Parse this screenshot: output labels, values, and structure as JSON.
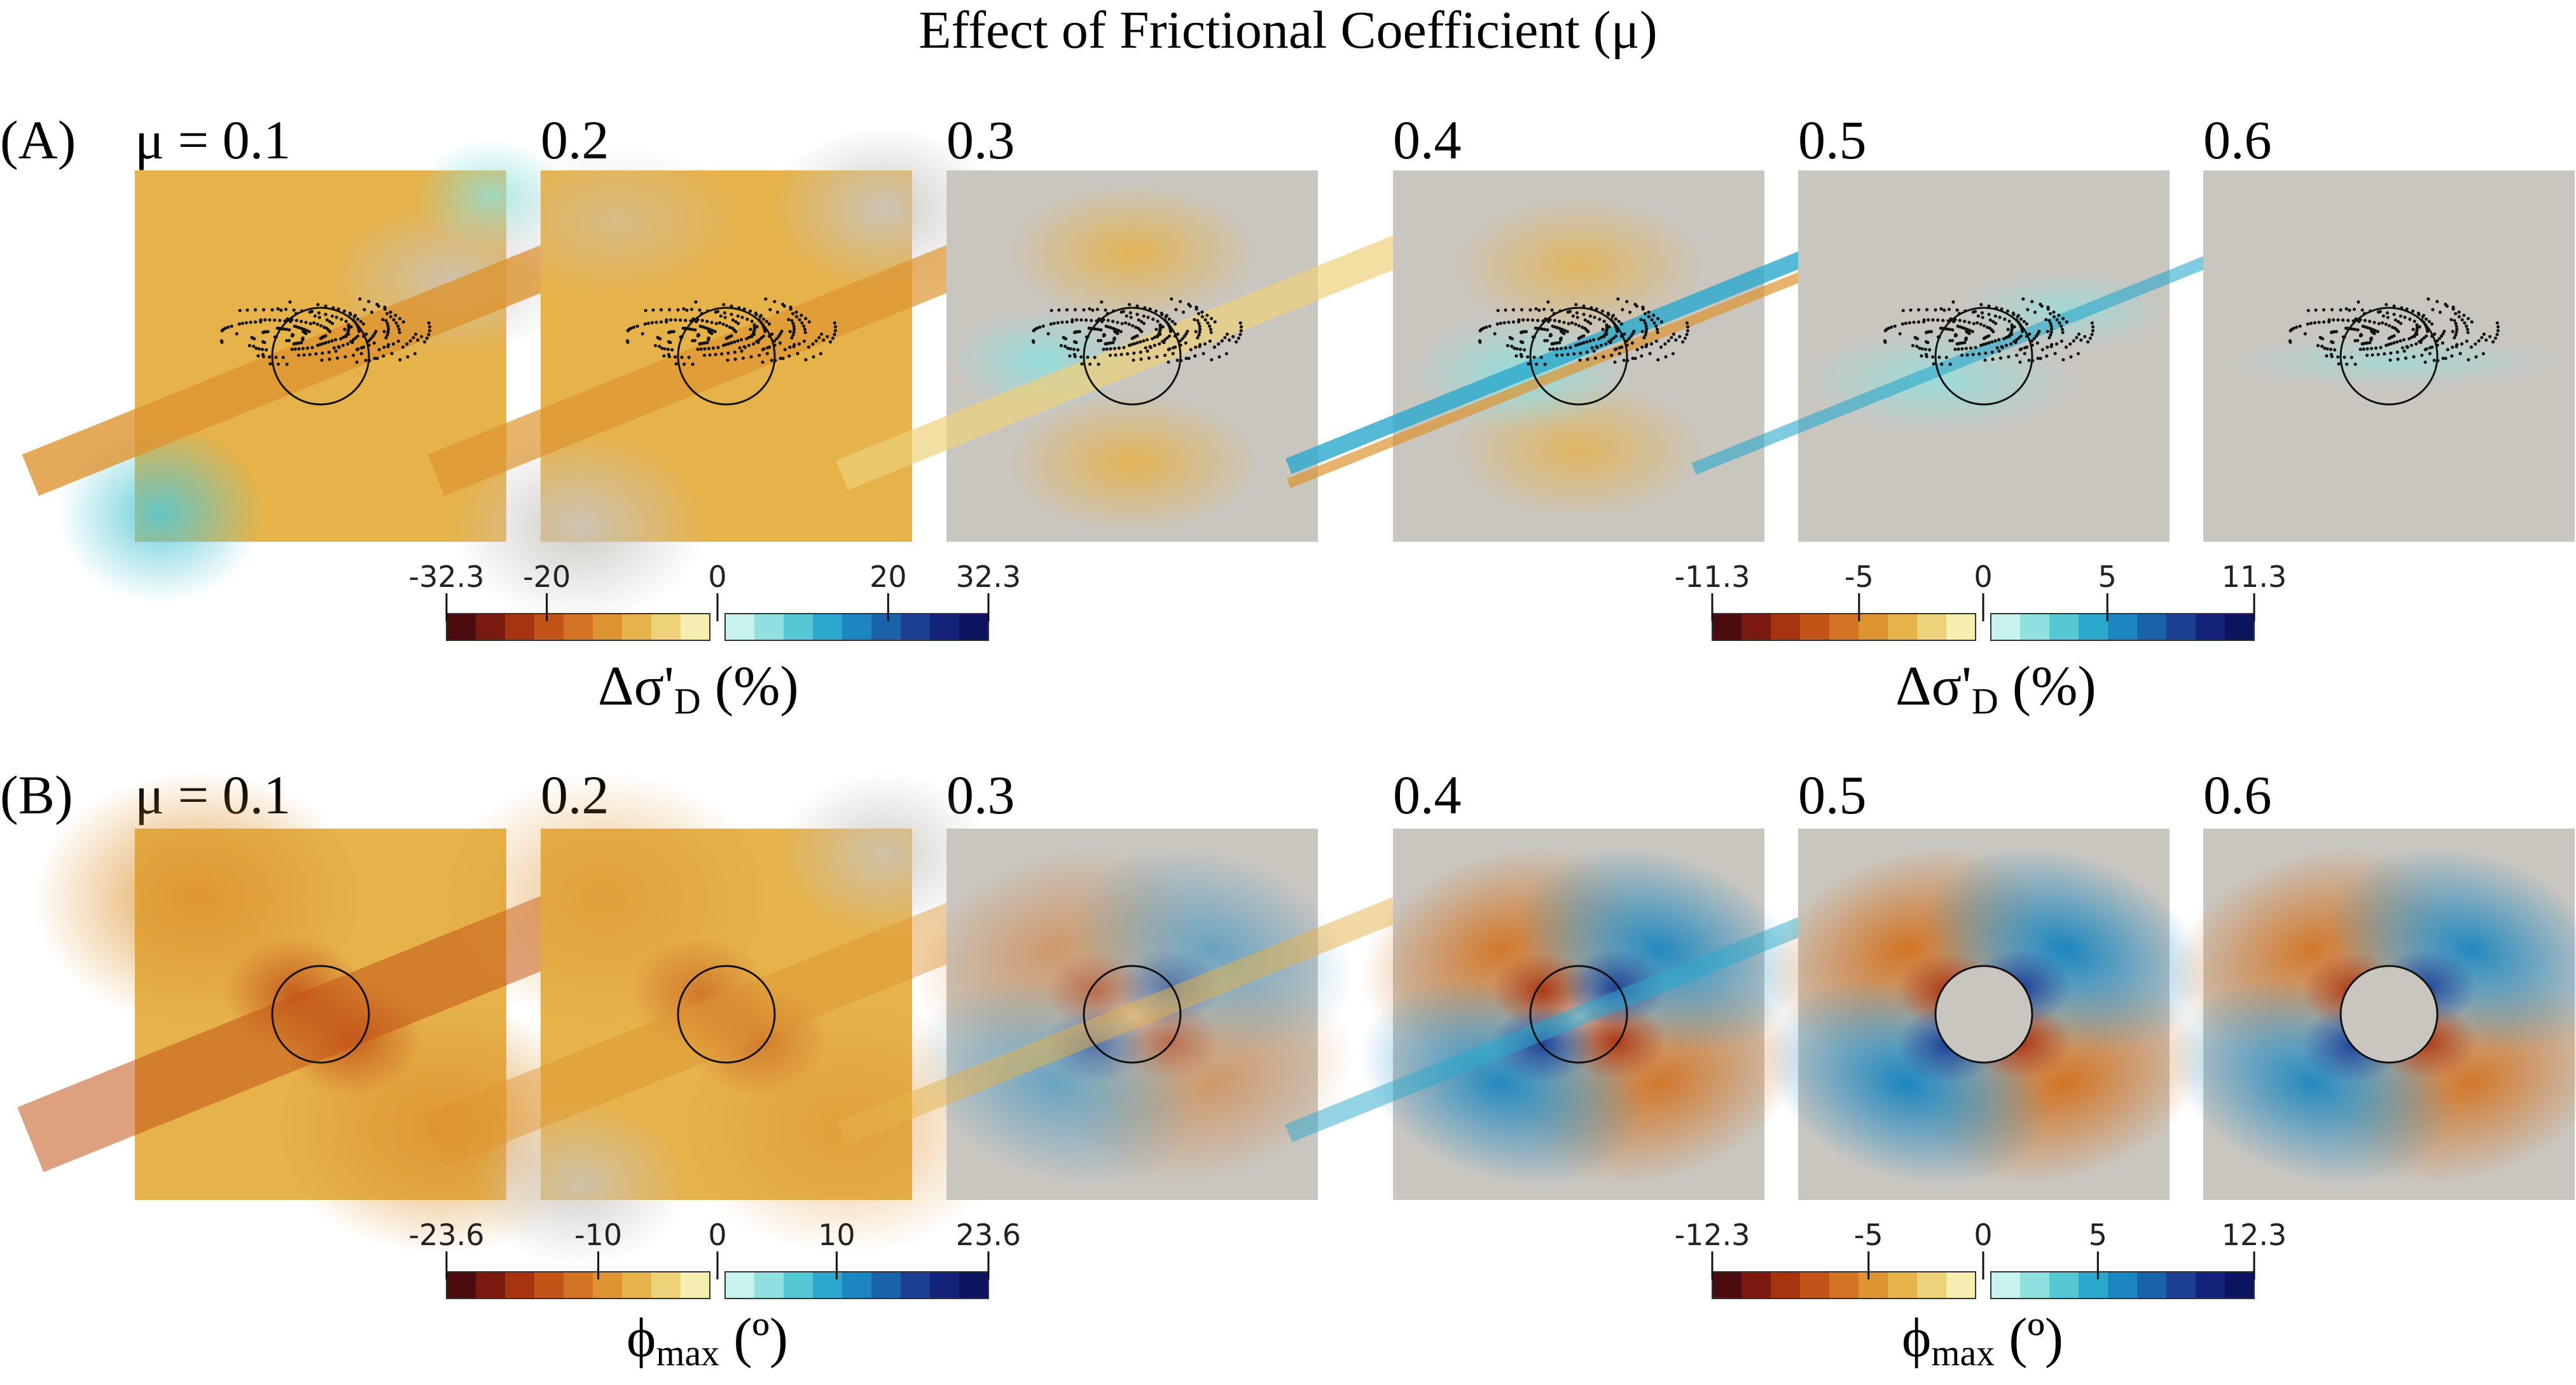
{
  "title": "Effect of Frictional Coefficient (μ)",
  "rows": [
    {
      "label": "(A)",
      "panels": [
        "μ = 0.1",
        "0.2",
        "0.3",
        "0.4",
        "0.5",
        "0.6"
      ],
      "colorbars": [
        {
          "ticks": [
            "-32.3",
            "-20",
            "0",
            "20",
            "32.3"
          ],
          "quantity_main": "Δσ'",
          "quantity_sub": "D",
          "quantity_unit": " (%)"
        },
        {
          "ticks": [
            "-11.3",
            "-5",
            "0",
            "5",
            "11.3"
          ],
          "quantity_main": "Δσ'",
          "quantity_sub": "D",
          "quantity_unit": " (%)"
        }
      ]
    },
    {
      "label": "(B)",
      "panels": [
        "μ = 0.1",
        "0.2",
        "0.3",
        "0.4",
        "0.5",
        "0.6"
      ],
      "colorbars": [
        {
          "ticks": [
            "-23.6",
            "-10",
            "0",
            "10",
            "23.6"
          ],
          "quantity_main": "ϕ",
          "quantity_sub": "max",
          "quantity_unit": " (º)"
        },
        {
          "ticks": [
            "-12.3",
            "-5",
            "0",
            "5",
            "12.3"
          ],
          "quantity_main": "ϕ",
          "quantity_sub": "max",
          "quantity_unit": " (º)"
        }
      ]
    }
  ],
  "colors": {
    "neutral": "#c9c6c0",
    "warm": [
      "#4a0c0c",
      "#7a1a10",
      "#a8340f",
      "#c35418",
      "#d27424",
      "#dd9430",
      "#e6b24a",
      "#eed27a",
      "#f6eeb0"
    ],
    "cool": [
      "#c8f2ee",
      "#8fe0de",
      "#56c8d4",
      "#2aa9cc",
      "#1b86bf",
      "#1a62aa",
      "#1c3f94",
      "#14237a",
      "#0c1460"
    ]
  }
}
